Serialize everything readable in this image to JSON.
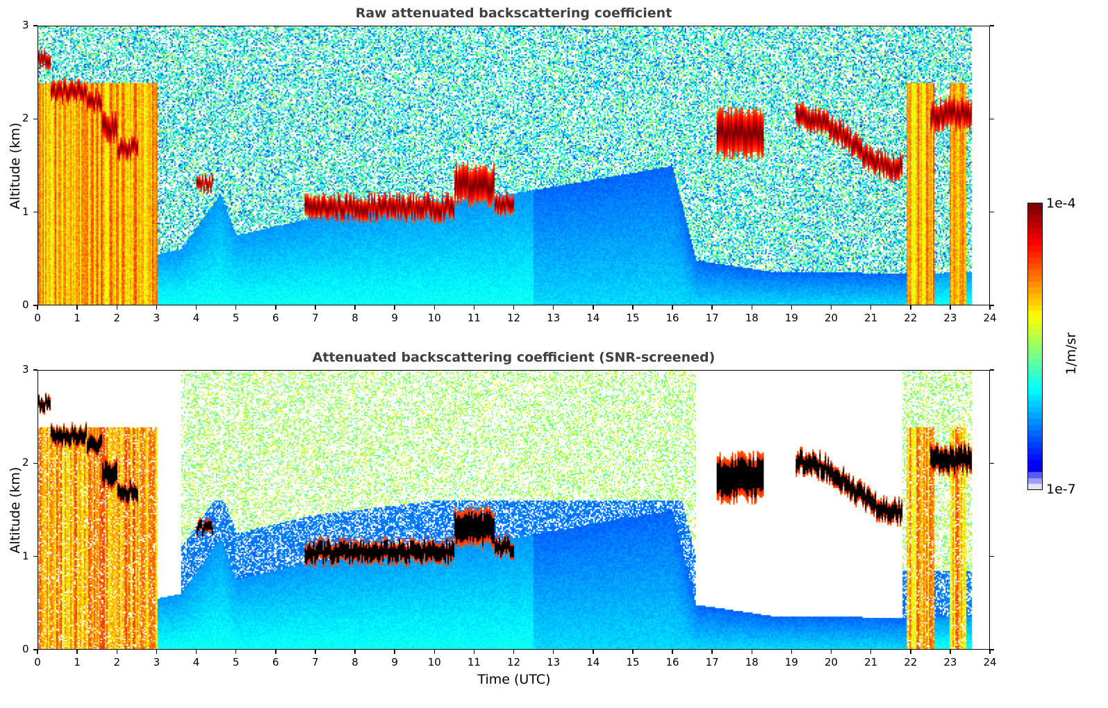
{
  "chart_data": [
    {
      "type": "heatmap",
      "title": "Raw attenuated backscattering coefficient",
      "xlabel": "",
      "ylabel": "Altitude (km)",
      "xlim": [
        0,
        24
      ],
      "ylim": [
        0,
        3
      ],
      "xticks": [
        "0",
        "1",
        "2",
        "3",
        "4",
        "5",
        "6",
        "7",
        "8",
        "9",
        "10",
        "11",
        "12",
        "13",
        "14",
        "15",
        "16",
        "17",
        "18",
        "19",
        "20",
        "21",
        "22",
        "23",
        "24"
      ],
      "yticks": [
        "0",
        "1",
        "2",
        "3"
      ],
      "data_end_hour": 23.55,
      "screened": false
    },
    {
      "type": "heatmap",
      "title": "Attenuated backscattering coefficient (SNR-screened)",
      "xlabel": "Time (UTC)",
      "ylabel": "Altitude (km)",
      "xlim": [
        0,
        24
      ],
      "ylim": [
        0,
        3
      ],
      "xticks": [
        "0",
        "1",
        "2",
        "3",
        "4",
        "5",
        "6",
        "7",
        "8",
        "9",
        "10",
        "11",
        "12",
        "13",
        "14",
        "15",
        "16",
        "17",
        "18",
        "19",
        "20",
        "21",
        "22",
        "23",
        "24"
      ],
      "yticks": [
        "0",
        "1",
        "2",
        "3"
      ],
      "data_end_hour": 23.55,
      "screened": true
    }
  ],
  "colorbar": {
    "label": "1/m/sr",
    "max_label": "1e-4",
    "min_label": "1e-7",
    "scale": "log",
    "range": [
      1e-07,
      0.0001
    ],
    "colormap": "jet"
  },
  "features": {
    "cloud_layers": [
      {
        "t0": 0.0,
        "t1": 0.3,
        "z": 2.65,
        "thick": 0.08
      },
      {
        "t0": 0.3,
        "t1": 1.2,
        "z": 2.3,
        "thick": 0.1
      },
      {
        "t0": 1.2,
        "t1": 1.6,
        "z": 2.2,
        "thick": 0.1
      },
      {
        "t0": 1.6,
        "t1": 2.0,
        "z": 1.9,
        "thick": 0.15
      },
      {
        "t0": 2.0,
        "t1": 2.5,
        "z": 1.7,
        "thick": 0.1
      },
      {
        "t0": 4.0,
        "t1": 4.4,
        "z": 1.3,
        "thick": 0.07
      },
      {
        "t0": 6.7,
        "t1": 10.5,
        "z": 1.05,
        "thick": 0.12
      },
      {
        "t0": 10.5,
        "t1": 11.5,
        "z": 1.3,
        "thick": 0.2
      },
      {
        "t0": 11.5,
        "t1": 12.0,
        "z": 1.1,
        "thick": 0.1
      },
      {
        "t0": 17.1,
        "t1": 18.3,
        "z": 1.85,
        "thick": 0.25
      },
      {
        "t0": 19.1,
        "t1": 21.8,
        "z": 1.8,
        "thick": 0.12
      },
      {
        "t0": 22.5,
        "t1": 23.55,
        "z": 2.05,
        "thick": 0.15
      }
    ],
    "boundary_layer_km": [
      {
        "t": 0,
        "z": 0.55
      },
      {
        "t": 3,
        "z": 0.55
      },
      {
        "t": 3.6,
        "z": 0.6
      },
      {
        "t": 4.6,
        "z": 1.2
      },
      {
        "t": 5.0,
        "z": 0.75
      },
      {
        "t": 7,
        "z": 0.95
      },
      {
        "t": 12,
        "z": 1.2
      },
      {
        "t": 16,
        "z": 1.5
      },
      {
        "t": 16.6,
        "z": 0.48
      },
      {
        "t": 18.5,
        "z": 0.36
      },
      {
        "t": 21.8,
        "z": 0.34
      },
      {
        "t": 23.55,
        "z": 0.35
      }
    ],
    "precip_columns": [
      {
        "t0": 0.0,
        "t1": 3.0
      },
      {
        "t0": 21.9,
        "t1": 22.6
      },
      {
        "t0": 23.0,
        "t1": 23.4
      }
    ]
  },
  "colors": {
    "title": "#404040",
    "text": "#000000",
    "background": "#ffffff"
  }
}
